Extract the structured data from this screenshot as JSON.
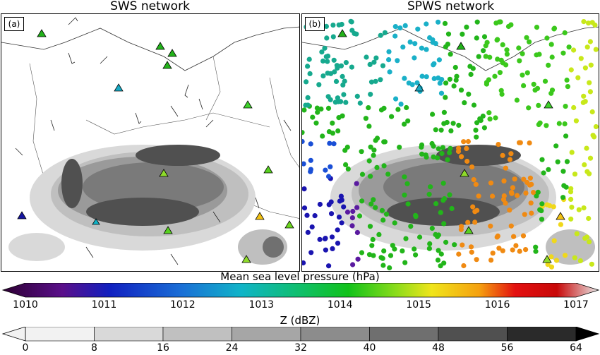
{
  "panels": [
    {
      "label": "(a)",
      "title": "SWS network"
    },
    {
      "label": "(b)",
      "title": "SPWS network"
    }
  ],
  "colorbars": {
    "pressure": {
      "title": "Mean sea level pressure (hPa)",
      "ticks": [
        "1010",
        "1011",
        "1012",
        "1013",
        "1014",
        "1015",
        "1016",
        "1017"
      ]
    },
    "reflectivity": {
      "title": "Z (dBZ)",
      "ticks": [
        "0",
        "8",
        "16",
        "24",
        "32",
        "40",
        "48",
        "56",
        "64"
      ]
    }
  },
  "colors": {
    "pressure_ramp": [
      "#2d0033",
      "#5a0f8a",
      "#1020c0",
      "#1a6fd6",
      "#10b4c8",
      "#0fbf6a",
      "#11c21a",
      "#8bdc1a",
      "#f0e51a",
      "#f5a010",
      "#e31010",
      "#c80808",
      "#d8d8d8"
    ],
    "dbz_ramp": [
      "#f2f2f2",
      "#d9d9d9",
      "#c0c0c0",
      "#a6a6a6",
      "#8c8c8c",
      "#6f6f6f",
      "#505050",
      "#2a2a2a"
    ]
  }
}
